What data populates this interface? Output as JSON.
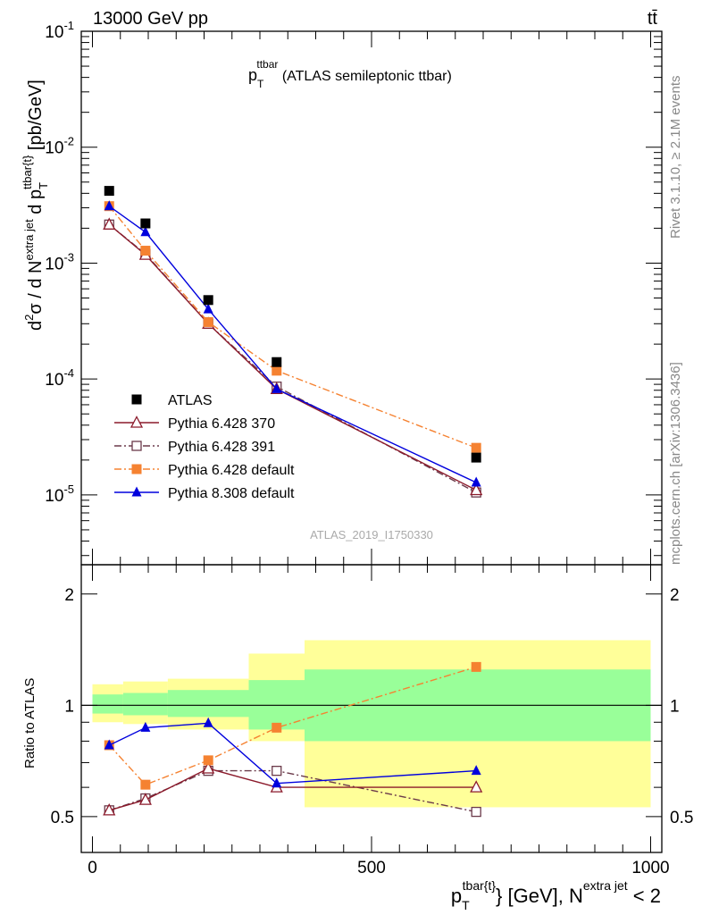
{
  "header": {
    "left": "13000 GeV pp",
    "right": "tt̄"
  },
  "side_text": {
    "rivet": "Rivet 3.1.10, ≥ 2.1M events",
    "mcplots": "mcplots.cern.ch [arXiv:1306.3436]"
  },
  "main_title": {
    "main": "p",
    "sub": "T",
    "sup": "ttbar",
    "rest": " (ATLAS semileptonic ttbar)"
  },
  "watermark": "ATLAS_2019_I1750330",
  "legend": [
    {
      "name": "ATLAS",
      "color": "#000000",
      "marker": "filled-square",
      "line": "none"
    },
    {
      "name": "Pythia 6.428 370",
      "color": "#8b1a2b",
      "marker": "open-triangle",
      "line": "solid"
    },
    {
      "name": "Pythia 6.428 391",
      "color": "#6b3a4a",
      "marker": "open-square",
      "line": "dashdot"
    },
    {
      "name": "Pythia 6.428 default",
      "color": "#f58231",
      "marker": "filled-square",
      "line": "dashdot"
    },
    {
      "name": "Pythia 8.308 default",
      "color": "#0000dd",
      "marker": "filled-triangle",
      "line": "solid"
    }
  ],
  "ylabel_main": "d²σ / d N^{extra jet} d p_T^{ttbar{t}} [pb/GeV]",
  "ylabel_ratio": "Ratio to ATLAS",
  "xlabel": "p_T^{tbar{t}} [GeV], N^{extra jet} < 2",
  "main_ytick_labels": [
    {
      "base": "10",
      "exp": "-5"
    },
    {
      "base": "10",
      "exp": "-4"
    },
    {
      "base": "10",
      "exp": "-3"
    },
    {
      "base": "10",
      "exp": "-2"
    },
    {
      "base": "10",
      "exp": "-1"
    }
  ],
  "ratio_ytick_labels": [
    "0.5",
    "1",
    "2"
  ],
  "xtick_labels": [
    "0",
    "500",
    "1000"
  ],
  "chart_data": [
    {
      "type": "scatter",
      "panel": "main",
      "yscale": "log",
      "ylim": [
        2.5e-06,
        0.1
      ],
      "xlim": [
        -20,
        1020
      ],
      "x": [
        30,
        95,
        207.5,
        330,
        687.5
      ],
      "series": [
        {
          "name": "ATLAS",
          "values": [
            0.0042,
            0.0022,
            0.00048,
            0.00014,
            2.1e-05
          ]
        },
        {
          "name": "Pythia 6.428 370",
          "values": [
            0.00215,
            0.00118,
            0.0003,
            8.2e-05,
            1.1e-05
          ]
        },
        {
          "name": "Pythia 6.428 391",
          "values": [
            0.00215,
            0.0012,
            0.0003,
            8.6e-05,
            1.05e-05
          ]
        },
        {
          "name": "Pythia 6.428 default",
          "values": [
            0.0031,
            0.00128,
            0.00031,
            0.000118,
            2.55e-05
          ]
        },
        {
          "name": "Pythia 8.308 default",
          "values": [
            0.0031,
            0.00185,
            0.0004,
            8.2e-05,
            1.28e-05
          ]
        }
      ]
    },
    {
      "type": "scatter",
      "panel": "ratio",
      "yscale": "log",
      "ylim": [
        0.4,
        2.4
      ],
      "xlim": [
        -20,
        1020
      ],
      "x": [
        30,
        95,
        207.5,
        330,
        687.5
      ],
      "series": [
        {
          "name": "Pythia 6.428 370",
          "values": [
            0.52,
            0.555,
            0.675,
            0.6,
            0.6
          ]
        },
        {
          "name": "Pythia 6.428 391",
          "values": [
            0.52,
            0.56,
            0.665,
            0.665,
            0.515
          ]
        },
        {
          "name": "Pythia 6.428 default",
          "values": [
            0.78,
            0.61,
            0.71,
            0.87,
            1.27
          ]
        },
        {
          "name": "Pythia 8.308 default",
          "values": [
            0.78,
            0.87,
            0.895,
            0.615,
            0.665
          ]
        }
      ],
      "uncertainty_bands": [
        {
          "xlow": 0,
          "xhigh": 55,
          "stat_low": 0.95,
          "stat_high": 1.07,
          "tot_low": 0.9,
          "tot_high": 1.14
        },
        {
          "xlow": 55,
          "xhigh": 135,
          "stat_low": 0.94,
          "stat_high": 1.08,
          "tot_low": 0.89,
          "tot_high": 1.16
        },
        {
          "xlow": 135,
          "xhigh": 280,
          "stat_low": 0.93,
          "stat_high": 1.1,
          "tot_low": 0.86,
          "tot_high": 1.18
        },
        {
          "xlow": 280,
          "xhigh": 380,
          "stat_low": 0.86,
          "stat_high": 1.17,
          "tot_low": 0.8,
          "tot_high": 1.38
        },
        {
          "xlow": 380,
          "xhigh": 1000,
          "stat_low": 0.8,
          "stat_high": 1.25,
          "tot_low": 0.53,
          "tot_high": 1.5
        }
      ]
    }
  ]
}
